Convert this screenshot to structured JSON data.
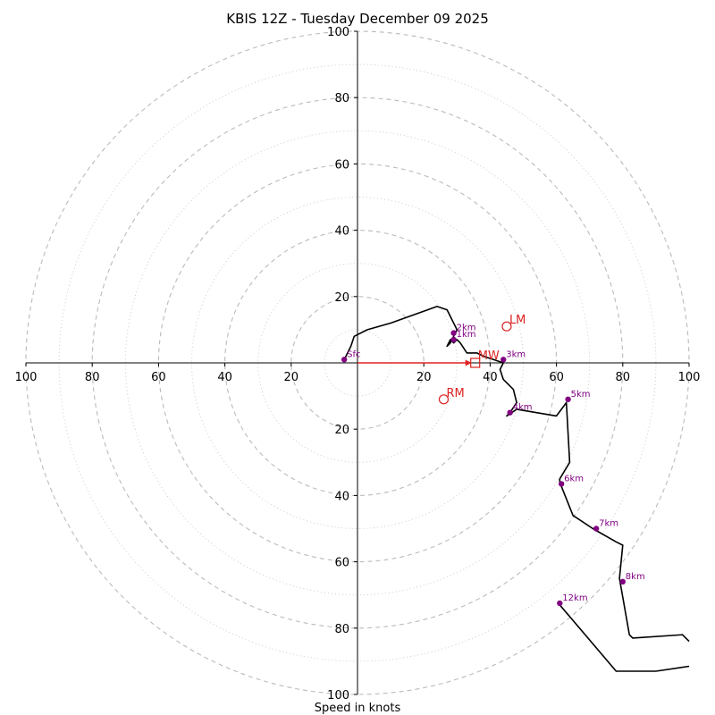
{
  "chart_data": {
    "type": "hodograph",
    "title": "KBIS 12Z - Tuesday December 09 2025",
    "xlabel": "Speed in knots",
    "x_ticks": [
      "100",
      "80",
      "60",
      "40",
      "20",
      "20",
      "40",
      "60",
      "80",
      "100"
    ],
    "y_ticks": [
      "100",
      "80",
      "60",
      "40",
      "20",
      "20",
      "40",
      "60",
      "80",
      "100"
    ],
    "rings_dashed": [
      20,
      40,
      60,
      80,
      100
    ],
    "rings_dotted": [
      10,
      30,
      50,
      70,
      90
    ],
    "range": [
      -100,
      100
    ],
    "hodograph_trace": [
      [
        -4,
        -1
      ],
      [
        -2,
        -5
      ],
      [
        -1,
        -8
      ],
      [
        3,
        -10
      ],
      [
        10,
        -12
      ],
      [
        24,
        -17
      ],
      [
        27,
        -16
      ],
      [
        29,
        -12
      ],
      [
        30,
        -10
      ],
      [
        29,
        -8
      ],
      [
        28,
        -6
      ],
      [
        27,
        -5
      ],
      [
        28,
        -7
      ],
      [
        29,
        -6
      ],
      [
        30,
        -7
      ],
      [
        31,
        -6
      ],
      [
        33,
        -3
      ],
      [
        36,
        -3
      ],
      [
        38,
        -2
      ],
      [
        41,
        -1
      ],
      [
        44,
        0
      ],
      [
        43,
        2
      ],
      [
        44,
        5
      ],
      [
        47,
        8
      ],
      [
        48,
        12
      ],
      [
        46,
        15
      ],
      [
        45,
        16
      ],
      [
        48,
        14
      ],
      [
        60,
        16
      ],
      [
        63,
        12
      ],
      [
        64,
        30
      ],
      [
        61,
        35
      ],
      [
        61,
        36
      ],
      [
        65,
        46
      ],
      [
        71,
        50
      ],
      [
        78,
        54
      ],
      [
        80,
        55
      ],
      [
        79,
        65
      ],
      [
        82,
        82
      ],
      [
        83,
        83
      ],
      [
        98,
        82
      ],
      [
        100,
        84
      ]
    ],
    "lower_trace": [
      [
        61,
        73
      ],
      [
        78,
        93
      ],
      [
        90,
        93
      ],
      [
        100,
        91.5
      ]
    ],
    "height_labels": [
      {
        "label": "Sfc",
        "u": -4,
        "v": -1
      },
      {
        "label": "1km",
        "u": 29,
        "v": -7
      },
      {
        "label": "2km",
        "u": 29,
        "v": -9
      },
      {
        "label": "3km",
        "u": 44,
        "v": -1
      },
      {
        "label": "4km",
        "u": 46,
        "v": 15
      },
      {
        "label": "5km",
        "u": 63.5,
        "v": 11
      },
      {
        "label": "6km",
        "u": 61.5,
        "v": 36.5
      },
      {
        "label": "7km",
        "u": 72,
        "v": 50
      },
      {
        "label": "8km",
        "u": 80,
        "v": 66
      },
      {
        "label": "12km",
        "u": 61,
        "v": 72.5
      }
    ],
    "storm_motion": {
      "LM": {
        "label": "LM",
        "u": 45,
        "v": -11
      },
      "RM": {
        "label": "RM",
        "u": 26,
        "v": 11
      },
      "MW": {
        "label": "MW",
        "u": 35.5,
        "v": 0
      }
    },
    "mean_wind_vector": {
      "from": [
        0,
        0
      ],
      "to": [
        35.5,
        0
      ]
    },
    "colors": {
      "trace": "#000000",
      "height_marker": "#800080",
      "storm": "#dd2222",
      "grid": "#bbbbbb"
    }
  }
}
